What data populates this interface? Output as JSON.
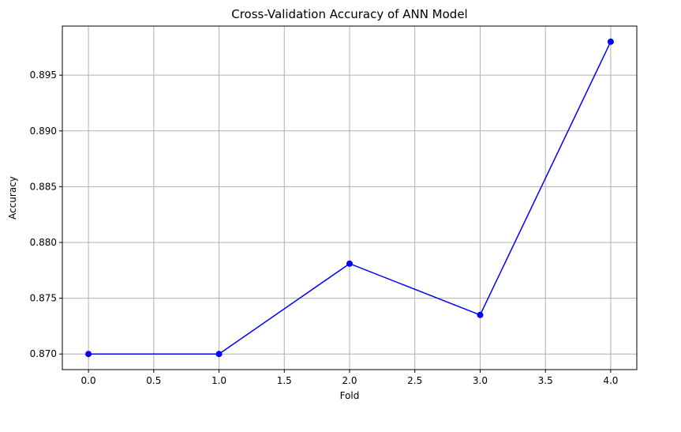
{
  "chart_data": {
    "type": "line",
    "title": "Cross-Validation Accuracy of ANN Model",
    "xlabel": "Fold",
    "ylabel": "Accuracy",
    "x": [
      0,
      1,
      2,
      3,
      4
    ],
    "series": [
      {
        "values": [
          0.87,
          0.87,
          0.8781,
          0.8735,
          0.898
        ],
        "color": "#0000ff",
        "marker": "circle"
      }
    ],
    "xlim": [
      -0.2,
      4.2
    ],
    "ylim": [
      0.8686,
      0.8994
    ],
    "xticks": [
      0.0,
      0.5,
      1.0,
      1.5,
      2.0,
      2.5,
      3.0,
      3.5,
      4.0
    ],
    "xtick_labels": [
      "0.0",
      "0.5",
      "1.0",
      "1.5",
      "2.0",
      "2.5",
      "3.0",
      "3.5",
      "4.0"
    ],
    "yticks": [
      0.87,
      0.875,
      0.88,
      0.885,
      0.89,
      0.895
    ],
    "ytick_labels": [
      "0.870",
      "0.875",
      "0.880",
      "0.885",
      "0.890",
      "0.895"
    ],
    "grid": true,
    "legend": "none"
  }
}
